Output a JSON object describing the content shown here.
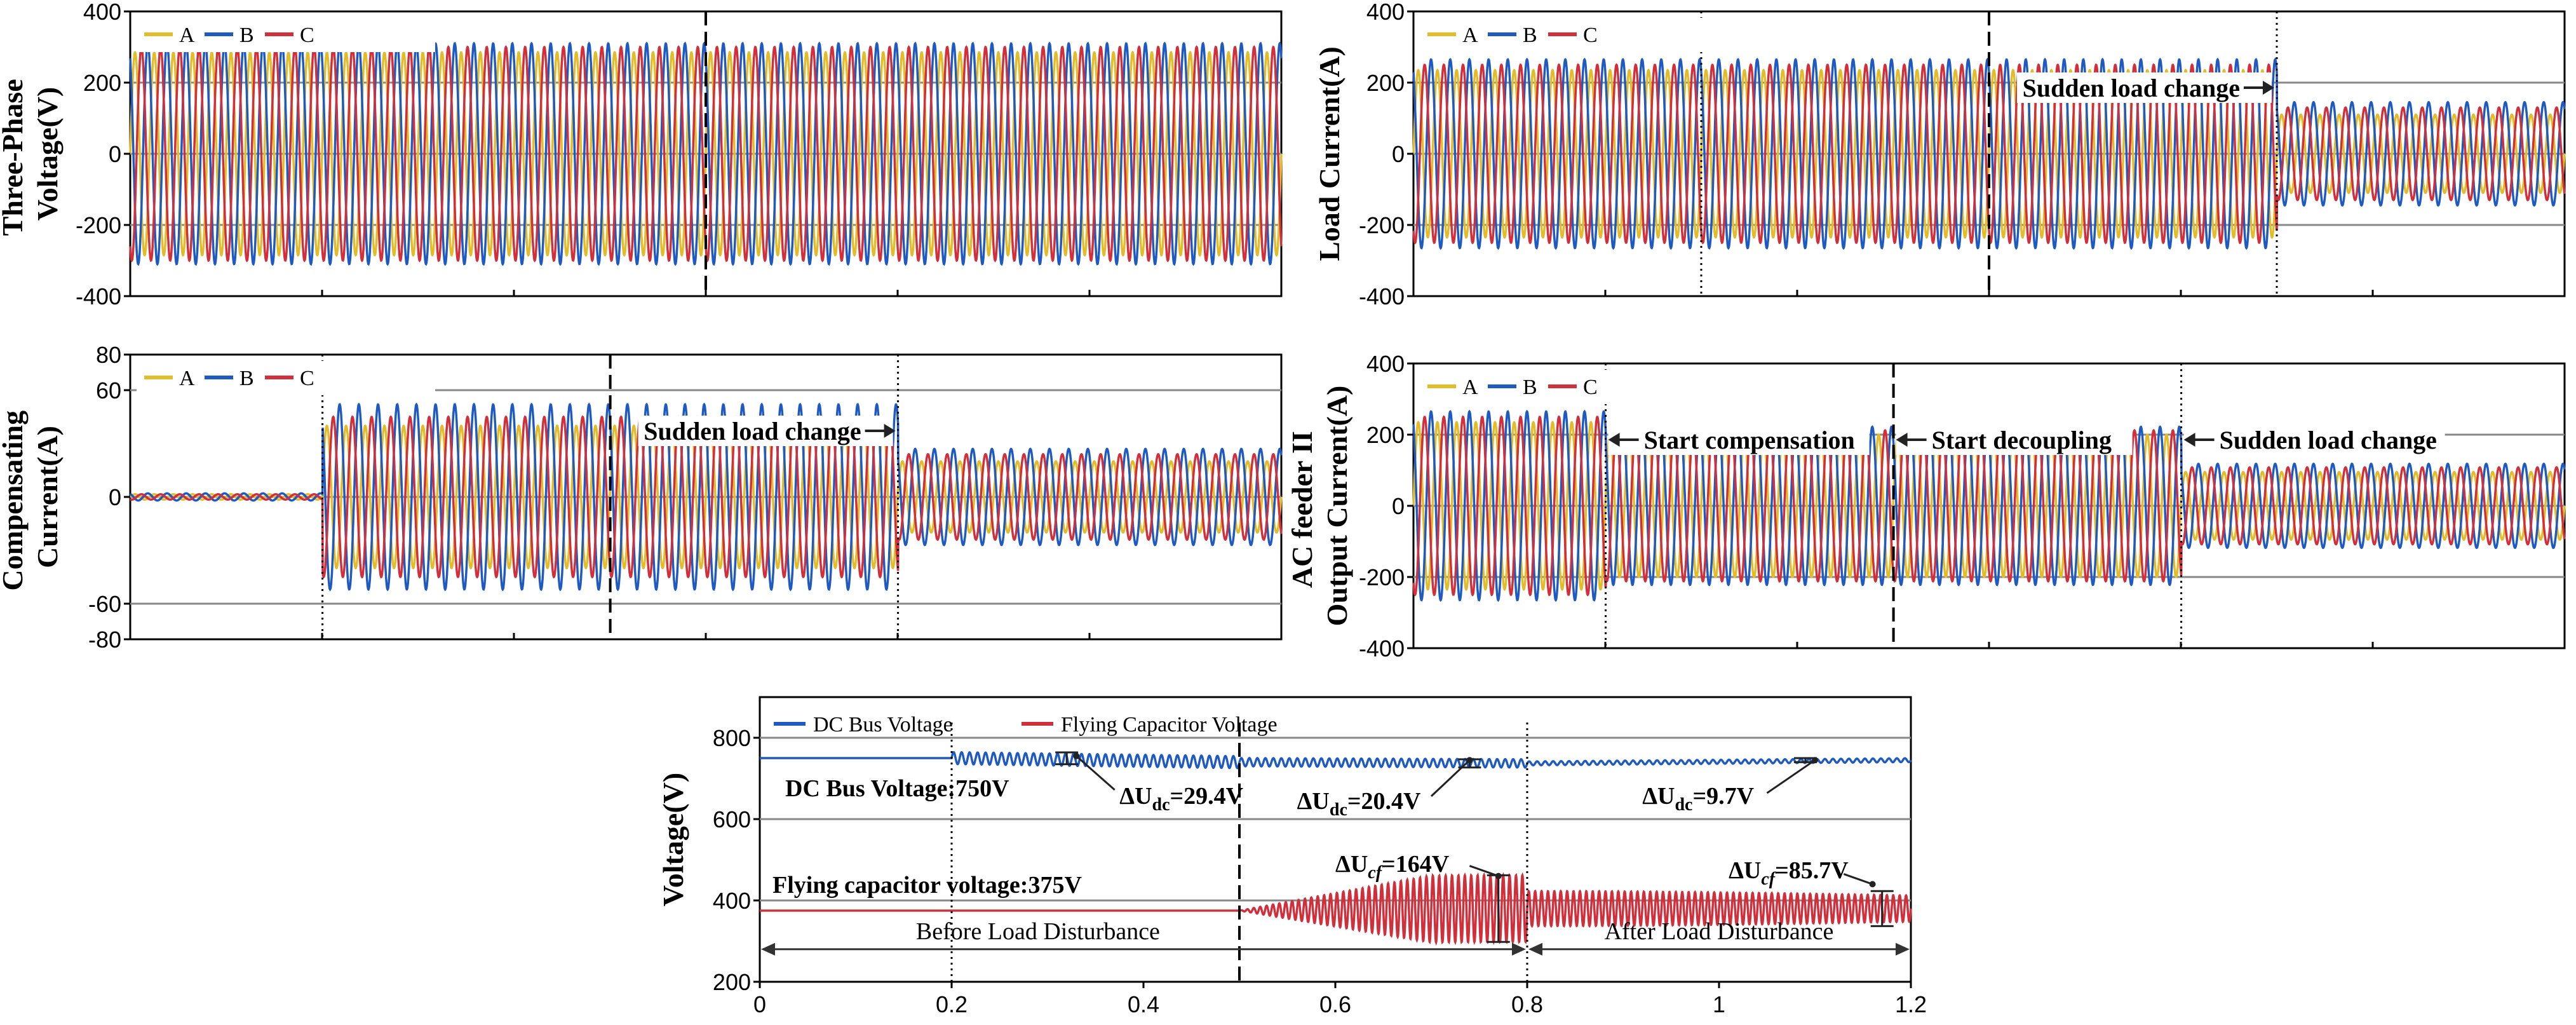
{
  "colors": {
    "A": "#e3bc2a",
    "B": "#1f5ac0",
    "C": "#d0303c",
    "dc": "#1f5ac0",
    "cf": "#d0303c",
    "axis": "#000000",
    "grid": "#888888"
  },
  "chart_data": [
    {
      "id": "p1",
      "type": "line",
      "ylabel": [
        "Three-Phase",
        "Voltage(V)"
      ],
      "yticks": [
        "400",
        "200",
        "0",
        "-200",
        "-400"
      ],
      "ylim": [
        -400,
        400
      ],
      "legend": [
        "A",
        "B",
        "C"
      ],
      "amplitude": {
        "A": 285,
        "B": 310,
        "C": 300
      },
      "cycles": 60,
      "events": [
        {
          "t": 0.5,
          "style": "dashed"
        }
      ],
      "annotations": []
    },
    {
      "id": "p2",
      "type": "line",
      "ylabel": [
        "Load Current(A)"
      ],
      "yticks": [
        "400",
        "200",
        "0",
        "-200",
        "-400"
      ],
      "ylim": [
        -400,
        400
      ],
      "legend": [
        "A",
        "B",
        "C"
      ],
      "segments": [
        {
          "to": 0.75,
          "amp": {
            "A": 235,
            "B": 265,
            "C": 250
          }
        },
        {
          "to": 1.0,
          "amp": {
            "A": 110,
            "B": 145,
            "C": 130
          }
        }
      ],
      "cycles": 60,
      "events": [
        {
          "t": 0.25,
          "style": "dotted"
        },
        {
          "t": 0.5,
          "style": "dashed"
        },
        {
          "t": 0.75,
          "style": "dotted"
        }
      ],
      "annotations": [
        {
          "text": "Sudden load change",
          "at": 0.75,
          "arrow": "right"
        }
      ]
    },
    {
      "id": "p3",
      "type": "line",
      "ylabel": [
        "Compensating",
        "Current(A)"
      ],
      "yticks": [
        "80",
        "60",
        "0",
        "-60",
        "-80"
      ],
      "ylim": [
        -80,
        80
      ],
      "legend": [
        "A",
        "B",
        "C"
      ],
      "segments": [
        {
          "to": 0.167,
          "amp": {
            "A": 1.5,
            "B": 2,
            "C": 1.5
          }
        },
        {
          "to": 0.667,
          "amp": {
            "A": 40,
            "B": 52,
            "C": 45
          }
        },
        {
          "to": 1.0,
          "amp": {
            "A": 20,
            "B": 27,
            "C": 24
          }
        }
      ],
      "cycles": 60,
      "events": [
        {
          "t": 0.167,
          "style": "dotted"
        },
        {
          "t": 0.417,
          "style": "dashed"
        },
        {
          "t": 0.667,
          "style": "dotted"
        }
      ],
      "annotations": [
        {
          "text": "Sudden load change",
          "at": 0.667,
          "arrow": "right"
        }
      ]
    },
    {
      "id": "p4",
      "type": "line",
      "ylabel": [
        "AC feeder II",
        "Output Current(A)"
      ],
      "yticks": [
        "400",
        "200",
        "0",
        "-200",
        "-400"
      ],
      "ylim": [
        -400,
        400
      ],
      "legend": [
        "A",
        "B",
        "C"
      ],
      "segments": [
        {
          "to": 0.167,
          "amp": {
            "A": 235,
            "B": 265,
            "C": 250
          }
        },
        {
          "to": 0.667,
          "amp": {
            "A": 200,
            "B": 222,
            "C": 212
          }
        },
        {
          "to": 1.0,
          "amp": {
            "A": 95,
            "B": 118,
            "C": 108
          }
        }
      ],
      "cycles": 60,
      "events": [
        {
          "t": 0.167,
          "style": "dotted"
        },
        {
          "t": 0.417,
          "style": "dashed"
        },
        {
          "t": 0.667,
          "style": "dotted"
        }
      ],
      "annotations": [
        {
          "text": "Start compensation",
          "at": 0.167,
          "arrow": "left"
        },
        {
          "text": "Start decoupling",
          "at": 0.417,
          "arrow": "left"
        },
        {
          "text": "Sudden load change",
          "at": 0.667,
          "arrow": "left"
        }
      ]
    },
    {
      "id": "p5",
      "type": "line",
      "ylabel": [
        "Voltage(V)"
      ],
      "xlim": [
        0,
        1.2
      ],
      "ylim": [
        200,
        900
      ],
      "xticks": [
        "0",
        "0.2",
        "0.4",
        "0.6",
        "0.8",
        "1",
        "1.2"
      ],
      "yticks": [
        "800",
        "600",
        "400",
        "200"
      ],
      "series": [
        {
          "name": "DC Bus Voltage",
          "key": "dc",
          "points": [
            [
              0,
              750
            ],
            [
              0.2,
              750
            ],
            [
              0.5,
              740
            ],
            [
              0.8,
              737
            ],
            [
              1.2,
              745
            ]
          ],
          "ripple": [
            [
              0.2,
              0.5,
              29.4
            ],
            [
              0.5,
              0.8,
              20.4
            ],
            [
              0.8,
              1.2,
              9.7
            ]
          ]
        },
        {
          "name": "Flying Capacitor Voltage",
          "key": "cf",
          "points": [
            [
              0,
              375
            ],
            [
              0.5,
              375
            ],
            [
              0.75,
              380
            ],
            [
              1.2,
              380
            ]
          ],
          "ripple": [
            [
              0.5,
              0.8,
              164
            ],
            [
              0.8,
              1.2,
              85.7
            ]
          ]
        }
      ],
      "events": [
        {
          "t": 0.2,
          "style": "dotted"
        },
        {
          "t": 0.5,
          "style": "dashed"
        },
        {
          "t": 0.8,
          "style": "dotted"
        }
      ],
      "labels": {
        "dc_bus": "DC Bus Voltage:750V",
        "flying_cap": "Flying capacitor voltage:375V",
        "before": "Before Load Disturbance",
        "after": "After Load Disturbance",
        "du1": {
          "sym": "ΔU",
          "sub": "dc",
          "val": "=29.4V"
        },
        "du2": {
          "sym": "ΔU",
          "sub": "dc",
          "val": "=20.4V"
        },
        "du3": {
          "sym": "ΔU",
          "sub": "dc",
          "val": "=9.7V"
        },
        "du4": {
          "sym": "ΔU",
          "sub": "cf",
          "val": "=164V"
        },
        "du5": {
          "sym": "ΔU",
          "sub": "cf",
          "val": "=85.7V"
        }
      }
    }
  ]
}
